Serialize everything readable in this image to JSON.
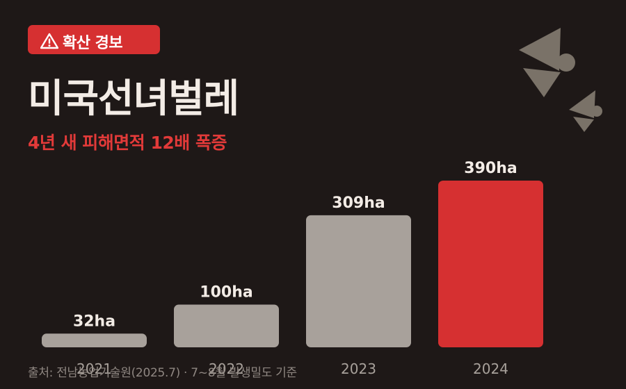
{
  "badge": {
    "icon": "warning-triangle-icon",
    "label": "확산 경보"
  },
  "title": "미국선녀벌레",
  "subtitle": "4년 새 피해면적 12배 폭증",
  "source": "출처: 전남농업기술원(2025.7) · 7~8월 발생밀도 기준",
  "colors": {
    "background": "#1e1817",
    "badge": "#d63031",
    "accent": "#e23a39",
    "bar_default": "#a8a19b",
    "bar_highlight": "#d63031",
    "value_label": "#f3ece6",
    "tick_label": "#a8a19b"
  },
  "chart_data": {
    "type": "bar",
    "categories": [
      "2021",
      "2022",
      "2023",
      "2024"
    ],
    "values": [
      32,
      100,
      309,
      390
    ],
    "value_labels": [
      "32ha",
      "100ha",
      "309ha",
      "390ha"
    ],
    "unit": "ha",
    "highlight_index": 3,
    "ylim": [
      0,
      390
    ],
    "grid": false,
    "legend": "none"
  }
}
